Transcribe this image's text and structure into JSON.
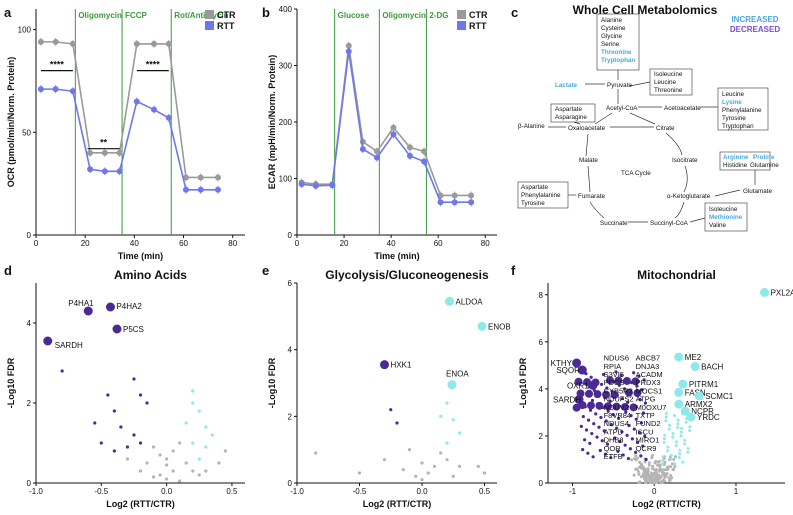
{
  "panels": {
    "a": "a",
    "b": "b",
    "c": "c",
    "d": "d",
    "e": "e",
    "f": "f"
  },
  "colors": {
    "ctr": "#9a9a9a",
    "rtt": "#6f77ee",
    "increased": "#4aa9de",
    "decreased": "#7b4fd8",
    "up": "#8ee8ec",
    "down": "#4b2a96",
    "ns": "#b4b4b4",
    "inject": "#3a9a3a"
  },
  "chart_data": [
    {
      "id": "a",
      "type": "line",
      "title": "",
      "xlabel": "Time (min)",
      "ylabel": "OCR (pmol/min/Norm. Protein)",
      "xlim": [
        0,
        85
      ],
      "ylim": [
        0,
        110
      ],
      "xticks": [
        0,
        20,
        40,
        60,
        80
      ],
      "yticks": [
        0,
        50,
        100
      ],
      "legend": [
        "CTR",
        "RTT"
      ],
      "injections": [
        {
          "t": 16,
          "label": "Oligomycin"
        },
        {
          "t": 35,
          "label": "FCCP"
        },
        {
          "t": 55,
          "label": "Rot/Antimycin"
        }
      ],
      "series": [
        {
          "name": "CTR",
          "x": [
            2,
            8,
            15,
            22,
            28,
            34,
            41,
            48,
            54,
            61,
            67,
            74
          ],
          "y": [
            94,
            94,
            93,
            40,
            40,
            40,
            93,
            93,
            93,
            28,
            28,
            28
          ]
        },
        {
          "name": "RTT",
          "x": [
            2,
            8,
            15,
            22,
            28,
            34,
            41,
            48,
            54,
            61,
            67,
            74
          ],
          "y": [
            71,
            71,
            70,
            32,
            31,
            31,
            65,
            61,
            57,
            22,
            22,
            22
          ]
        }
      ],
      "significance": [
        {
          "x1": 2,
          "x2": 15,
          "y": 80,
          "label": "****"
        },
        {
          "x1": 21,
          "x2": 34,
          "y": 42,
          "label": "**"
        },
        {
          "x1": 41,
          "x2": 54,
          "y": 80,
          "label": "****"
        }
      ]
    },
    {
      "id": "b",
      "type": "line",
      "title": "",
      "xlabel": "Time (min)",
      "ylabel": "ECAR (mpH/min/Norm. Protein)",
      "xlim": [
        0,
        85
      ],
      "ylim": [
        0,
        400
      ],
      "xticks": [
        0,
        20,
        40,
        60,
        80
      ],
      "yticks": [
        0,
        100,
        200,
        300,
        400
      ],
      "legend": [
        "CTR",
        "RTT"
      ],
      "injections": [
        {
          "t": 16,
          "label": "Glucose"
        },
        {
          "t": 35,
          "label": "Oligomycin"
        },
        {
          "t": 55,
          "label": "2-DG"
        }
      ],
      "series": [
        {
          "name": "CTR",
          "x": [
            2,
            8,
            15,
            22,
            28,
            34,
            41,
            48,
            54,
            61,
            67,
            74
          ],
          "y": [
            93,
            90,
            90,
            335,
            165,
            148,
            190,
            155,
            148,
            70,
            70,
            70
          ]
        },
        {
          "name": "RTT",
          "x": [
            2,
            8,
            15,
            22,
            28,
            34,
            41,
            48,
            54,
            61,
            67,
            74
          ],
          "y": [
            90,
            87,
            88,
            325,
            152,
            137,
            178,
            140,
            130,
            58,
            58,
            58
          ]
        }
      ]
    },
    {
      "id": "c",
      "type": "diagram",
      "title": "Whole Cell Metabolomics",
      "legend": [
        "INCREASED",
        "DECREASED"
      ]
    },
    {
      "id": "d",
      "type": "scatter",
      "title": "Amino Acids",
      "xlabel": "Log2 (RTT/CTR)",
      "ylabel": "-Log10 FDR",
      "xlim": [
        -1.0,
        0.6
      ],
      "ylim": [
        0,
        5
      ],
      "xticks": [
        -1.0,
        -0.5,
        0.0,
        0.5
      ],
      "yticks": [
        0,
        2,
        4
      ],
      "labeled": [
        {
          "label": "P4HA1",
          "x": -0.6,
          "y": 4.3
        },
        {
          "label": "P4HA2",
          "x": -0.43,
          "y": 4.4
        },
        {
          "label": "P5CS",
          "x": -0.38,
          "y": 3.85
        },
        {
          "label": "SARDH",
          "x": -0.91,
          "y": 3.55
        }
      ],
      "down": [
        [
          -0.8,
          2.8
        ],
        [
          -0.45,
          2.2
        ],
        [
          -0.4,
          1.8
        ],
        [
          -0.55,
          1.5
        ],
        [
          -0.35,
          1.4
        ],
        [
          -0.25,
          1.2
        ],
        [
          -0.2,
          2.2
        ],
        [
          -0.2,
          1.0
        ],
        [
          -0.3,
          0.9
        ],
        [
          -0.25,
          2.6
        ],
        [
          -0.15,
          2.0
        ],
        [
          -0.5,
          1.0
        ],
        [
          -0.4,
          0.8
        ]
      ],
      "up": [
        [
          0.2,
          2.3
        ],
        [
          0.25,
          1.8
        ],
        [
          0.15,
          1.5
        ],
        [
          0.3,
          1.4
        ],
        [
          0.2,
          1.0
        ],
        [
          0.35,
          1.2
        ],
        [
          0.3,
          0.9
        ],
        [
          0.25,
          0.6
        ],
        [
          0.2,
          2.0
        ]
      ],
      "ns": [
        [
          0.0,
          0.1
        ],
        [
          -0.05,
          0.2
        ],
        [
          0.05,
          0.3
        ],
        [
          -0.1,
          0.15
        ],
        [
          0.1,
          0.05
        ],
        [
          0.0,
          0.45
        ],
        [
          -0.15,
          0.5
        ],
        [
          0.15,
          0.5
        ],
        [
          -0.05,
          0.7
        ],
        [
          0.05,
          0.8
        ],
        [
          0.2,
          0.3
        ],
        [
          0.3,
          0.3
        ],
        [
          -0.2,
          0.3
        ],
        [
          -0.3,
          0.6
        ],
        [
          0.4,
          0.5
        ],
        [
          0.45,
          0.8
        ],
        [
          -0.1,
          0.9
        ],
        [
          0.1,
          1.0
        ],
        [
          0.0,
          0.6
        ],
        [
          0.25,
          0.2
        ]
      ]
    },
    {
      "id": "e",
      "type": "scatter",
      "title": "Glycolysis/Gluconeogenesis",
      "xlabel": "Log2 (RTT/CTR)",
      "ylabel": "-Log10 FDR",
      "xlim": [
        -1.0,
        0.6
      ],
      "ylim": [
        0,
        6
      ],
      "xticks": [
        -1.0,
        -0.5,
        0.0,
        0.5
      ],
      "yticks": [
        0,
        2,
        4,
        6
      ],
      "labeled": [
        {
          "label": "ALDOA",
          "x": 0.22,
          "y": 5.45
        },
        {
          "label": "ENOB",
          "x": 0.48,
          "y": 4.7
        },
        {
          "label": "HXK1",
          "x": -0.3,
          "y": 3.55
        },
        {
          "label": "ENOA",
          "x": 0.24,
          "y": 2.95
        }
      ],
      "down": [
        [
          -0.25,
          2.2
        ],
        [
          -0.2,
          1.8
        ]
      ],
      "up": [
        [
          0.2,
          2.4
        ],
        [
          0.25,
          1.9
        ],
        [
          0.3,
          1.5
        ],
        [
          0.2,
          1.2
        ],
        [
          0.15,
          2.0
        ]
      ],
      "ns": [
        [
          0.0,
          0.1
        ],
        [
          0.05,
          0.3
        ],
        [
          -0.05,
          0.2
        ],
        [
          0.1,
          0.5
        ],
        [
          0.0,
          0.6
        ],
        [
          -0.15,
          0.4
        ],
        [
          0.2,
          0.7
        ],
        [
          0.3,
          0.5
        ],
        [
          0.45,
          0.5
        ],
        [
          0.5,
          0.3
        ],
        [
          -0.3,
          0.7
        ],
        [
          -0.5,
          0.3
        ],
        [
          -0.85,
          0.9
        ],
        [
          0.15,
          0.9
        ],
        [
          -0.1,
          1.0
        ],
        [
          0.25,
          0.2
        ]
      ]
    },
    {
      "id": "f",
      "type": "scatter",
      "title": "Mitochondrial",
      "xlabel": "Log2 (RTT/CTR)",
      "ylabel": "-Log10 FDR",
      "xlim": [
        -1.3,
        1.6
      ],
      "ylim": [
        0,
        8.5
      ],
      "xticks": [
        -1,
        0,
        1
      ],
      "yticks": [
        0,
        2,
        4,
        6,
        8
      ],
      "labeled_up": [
        {
          "label": "PXL2A",
          "x": 1.35,
          "y": 8.1
        },
        {
          "label": "ME2",
          "x": 0.3,
          "y": 5.35
        },
        {
          "label": "BACH",
          "x": 0.5,
          "y": 4.95
        },
        {
          "label": "PITRM1",
          "x": 0.35,
          "y": 4.2
        },
        {
          "label": "FASN",
          "x": 0.3,
          "y": 3.85
        },
        {
          "label": "SCMC1",
          "x": 0.55,
          "y": 3.7
        },
        {
          "label": "ARMX2",
          "x": 0.3,
          "y": 3.35
        },
        {
          "label": "NCPR",
          "x": 0.38,
          "y": 3.05
        },
        {
          "label": "YRDC",
          "x": 0.45,
          "y": 2.8
        }
      ],
      "labeled_down": [
        {
          "label": "KTHY",
          "x": -0.95,
          "y": 5.1
        },
        {
          "label": "SQOR",
          "x": -0.88,
          "y": 4.8
        },
        {
          "label": "OXR1",
          "x": -0.75,
          "y": 4.15
        },
        {
          "label": "SARDH",
          "x": -0.92,
          "y": 3.55
        }
      ],
      "cluster_labels": [
        "NDUS6",
        "ABCB7",
        "RPIA",
        "DNJA3",
        "S3VI5",
        "ACADM",
        "PDCS",
        "PRDX3",
        "CYB5R3",
        "MOCS1",
        "NDUFS2",
        "ATPG",
        "NDUV2",
        "M0OXU7",
        "F8VR84",
        "TXTP",
        "NDUS4",
        "FUND2",
        "ATPD",
        "ISCU",
        "DHB8",
        "MIRO1",
        "QOR",
        "QCR9",
        "ETFB"
      ],
      "ns_count": 180
    }
  ],
  "metab": {
    "title": "Whole Cell Metabolomics",
    "legend_inc": "INCREASED",
    "legend_dec": "DECREASED",
    "box_top": [
      "Alanine",
      "Cysteine",
      "Glycine",
      "Serine",
      "Threonine",
      "Tryptophan"
    ],
    "box_ile": [
      "Isoleucine",
      "Leucine",
      "Threonine"
    ],
    "box_leu": [
      "Leucine",
      "Lysine",
      "Phenylalanine",
      "Tyrosine",
      "Tryptophan"
    ],
    "box_asp": [
      "Aspartate",
      "Asparagine"
    ],
    "box_arg_l1a": "Arginine",
    "box_arg_l1b": "Proline",
    "box_arg_l2a": "Histidine",
    "box_arg_l2b": "Glutamine",
    "box_aspphe": [
      "Aspartate",
      "Phenylalanine",
      "Tyrosine"
    ],
    "box_ilemet": [
      "Isoleucine",
      "Methionine",
      "Valine"
    ],
    "nodes": {
      "lactate": "Lactate",
      "pyruvate": "Pyruvate",
      "acetyl": "Acetyl-CoA",
      "acetoacetate": "Acetoacetate",
      "balanine": "β-Alanine",
      "oxaloacetate": "Oxaloacetate",
      "citrate": "Citrate",
      "malate": "Malate",
      "tca": "TCA Cycle",
      "isocitrate": "Isocitrate",
      "fumarate": "Fumarate",
      "akg": "α-Ketoglutarate",
      "glutamate": "Glutamate",
      "succinate": "Succinate",
      "succoa": "Succinyl-CoA"
    }
  }
}
